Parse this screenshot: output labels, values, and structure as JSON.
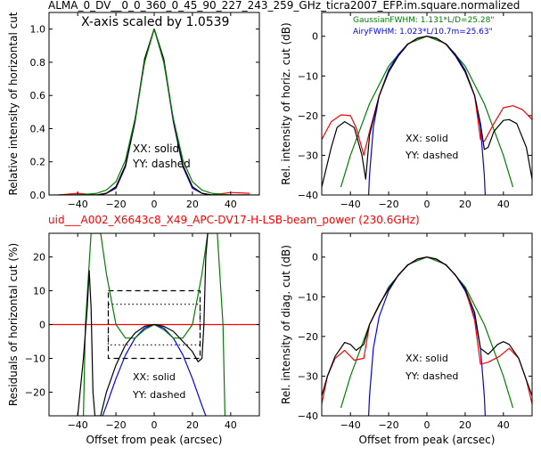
{
  "figure": {
    "title": "ALMA_0_DV__0_0_360_0_45_90_227_243_259_GHz_ticra2007_EFP.im.square.normalized",
    "subtitle": "uid___A002_X6643c8_X49_APC-DV17-H-LSB-beam_power (230.6GHz)",
    "subtitle_color": "#ff0000"
  },
  "chart_data": [
    {
      "type": "line",
      "panel": "top-left",
      "xlabel": "",
      "ylabel": "Relative intensity of horizontal cut",
      "xlim": [
        -55,
        55
      ],
      "ylim": [
        0,
        1.1
      ],
      "xticks": [
        -40,
        -20,
        0,
        20,
        40
      ],
      "yticks": [
        0.0,
        0.2,
        0.4,
        0.6,
        0.8,
        1.0
      ],
      "ytick_labels": [
        "0.0",
        "0.2",
        "0.4",
        "0.6",
        "0.8",
        "1.0"
      ],
      "annotations": [
        "X-axis scaled by 1.0539",
        "XX: solid",
        "YY: dashed"
      ],
      "series": [
        {
          "color": "#0000ff",
          "style": "solid",
          "x": [
            -50,
            -40,
            -30,
            -25,
            -20,
            -15,
            -10,
            -5,
            0,
            5,
            10,
            15,
            20,
            25,
            30,
            40,
            50
          ],
          "y": [
            0.0,
            0.0,
            0.0,
            0.01,
            0.04,
            0.17,
            0.44,
            0.81,
            1.0,
            0.81,
            0.44,
            0.17,
            0.04,
            0.01,
            0.0,
            0.0,
            0.0
          ]
        },
        {
          "color": "#ff0000",
          "style": "solid",
          "x": [
            -50,
            -40,
            -30,
            -25,
            -20,
            -15,
            -10,
            -5,
            0,
            5,
            10,
            15,
            20,
            25,
            30,
            40,
            50
          ],
          "y": [
            0.0,
            0.01,
            0.0,
            0.01,
            0.05,
            0.18,
            0.45,
            0.82,
            1.0,
            0.82,
            0.45,
            0.18,
            0.05,
            0.01,
            0.0,
            0.015,
            0.01
          ]
        },
        {
          "color": "#000000",
          "style": "solid",
          "x": [
            -50,
            -40,
            -30,
            -25,
            -20,
            -15,
            -10,
            -5,
            0,
            5,
            10,
            15,
            20,
            25,
            30,
            40,
            50
          ],
          "y": [
            0.0,
            0.0,
            0.0,
            0.01,
            0.05,
            0.18,
            0.45,
            0.82,
            1.0,
            0.82,
            0.45,
            0.18,
            0.05,
            0.01,
            0.0,
            0.0,
            0.0
          ]
        },
        {
          "color": "#008000",
          "style": "solid",
          "x": [
            -55,
            -40,
            -30,
            -25,
            -20,
            -15,
            -10,
            -5,
            0,
            5,
            10,
            15,
            20,
            25,
            30,
            40,
            55
          ],
          "y": [
            0.0,
            0.0,
            0.01,
            0.03,
            0.08,
            0.21,
            0.46,
            0.8,
            1.0,
            0.8,
            0.46,
            0.21,
            0.08,
            0.03,
            0.01,
            0.0,
            0.0
          ]
        }
      ]
    },
    {
      "type": "line",
      "panel": "top-right",
      "xlabel": "",
      "ylabel": "Rel. intensity of horiz. cut (dB)",
      "xlim": [
        -55,
        55
      ],
      "ylim": [
        -40,
        6
      ],
      "xticks": [
        -40,
        -20,
        0,
        20,
        40
      ],
      "yticks": [
        -40,
        -30,
        -20,
        -10,
        0
      ],
      "annotations": [
        "GaussianFWHM: 1.131*L/D=25.28\"",
        "AiryFWHM: 1.023*L/10.7m=25.63\"",
        "XX: solid",
        "YY: dashed"
      ],
      "annotation_colors": [
        "#008000",
        "#0000ff",
        "#000000",
        "#000000"
      ],
      "series": [
        {
          "color": "#008000",
          "style": "solid",
          "x": [
            -45,
            -40,
            -30,
            -20,
            -10,
            0,
            10,
            20,
            30,
            40,
            45
          ],
          "y": [
            -38,
            -30,
            -17,
            -7.5,
            -1.9,
            0,
            -1.9,
            -7.5,
            -17,
            -30,
            -38
          ]
        },
        {
          "color": "#0000ff",
          "style": "solid",
          "x": [
            -30.5,
            -30,
            -28,
            -25,
            -20,
            -15,
            -10,
            -5,
            0,
            5,
            10,
            15,
            20,
            25,
            28,
            30,
            30.5
          ],
          "y": [
            -40,
            -35,
            -23,
            -15,
            -8.5,
            -4.6,
            -2,
            -0.5,
            0,
            -0.5,
            -2,
            -4.6,
            -8.5,
            -15,
            -23,
            -35,
            -40
          ]
        },
        {
          "color": "#ff0000",
          "style": "solid",
          "x": [
            -55,
            -50,
            -45,
            -40,
            -37,
            -33,
            -30,
            -25,
            -20,
            -15,
            -10,
            -5,
            0,
            5,
            10,
            15,
            20,
            25,
            28,
            30,
            35,
            40,
            45,
            50,
            55
          ],
          "y": [
            -26,
            -21.5,
            -19.8,
            -20,
            -23,
            -30,
            -24,
            -15,
            -9,
            -5,
            -2,
            -0.5,
            0,
            -0.5,
            -2,
            -5,
            -9,
            -15,
            -26,
            -26.5,
            -22,
            -18,
            -17.5,
            -18.5,
            -21
          ]
        },
        {
          "color": "#000000",
          "style": "solid",
          "x": [
            -55,
            -50,
            -47,
            -43,
            -38,
            -34,
            -32,
            -30,
            -25,
            -20,
            -15,
            -10,
            -5,
            0,
            5,
            10,
            15,
            20,
            25,
            28,
            30,
            32,
            35,
            40,
            43,
            47,
            52,
            55
          ],
          "y": [
            -38,
            -28,
            -23,
            -21.5,
            -23,
            -30,
            -36,
            -25,
            -15,
            -9,
            -5,
            -2,
            -0.5,
            0,
            -0.5,
            -2,
            -5,
            -9,
            -15,
            -22,
            -28.5,
            -28,
            -24,
            -21.2,
            -21,
            -22,
            -28,
            -36
          ]
        }
      ]
    },
    {
      "type": "line",
      "panel": "bottom-left",
      "xlabel": "Offset from peak (arcsec)",
      "ylabel": "Residuals of horizontal cut (%)",
      "xlim": [
        -55,
        55
      ],
      "ylim": [
        -27,
        27
      ],
      "xticks": [
        -40,
        -20,
        0,
        20,
        40
      ],
      "yticks": [
        -20,
        -10,
        0,
        10,
        20
      ],
      "annotations": [
        "XX: solid",
        "YY: dashed"
      ],
      "series": [
        {
          "color": "#ff0000",
          "style": "solid",
          "x": [
            -55,
            55
          ],
          "y": [
            0,
            0
          ]
        },
        {
          "color": "#000000",
          "style": "dashed",
          "x": [
            -24,
            24,
            24,
            -24,
            -24
          ],
          "y": [
            10,
            10,
            -10,
            -10,
            10
          ]
        },
        {
          "color": "#000000",
          "style": "dotted",
          "x": [
            -24,
            24,
            24,
            -24,
            -24
          ],
          "y": [
            6,
            6,
            -6,
            -6,
            6
          ]
        },
        {
          "color": "#0000ff",
          "style": "solid",
          "x": [
            -27,
            -25,
            -20,
            -15,
            -10,
            -5,
            0,
            5,
            10,
            15,
            20,
            25,
            27
          ],
          "y": [
            -27,
            -24,
            -16,
            -9,
            -4,
            -1,
            0,
            -1,
            -4,
            -9,
            -16,
            -24,
            -27
          ]
        },
        {
          "color": "#008000",
          "style": "solid",
          "x": [
            -37,
            -36,
            -33,
            -28,
            -25,
            -20,
            -15,
            -10,
            -5,
            0,
            5,
            10,
            15,
            20,
            25,
            28,
            33,
            36,
            37
          ],
          "y": [
            -27,
            0,
            27,
            27,
            15,
            0,
            -4,
            -4,
            -1.5,
            0,
            -1.5,
            -4,
            -4,
            0,
            15,
            27,
            27,
            0,
            -27
          ]
        },
        {
          "color": "#000000",
          "style": "solid",
          "x": [
            -40,
            -37,
            -35,
            -34,
            -33,
            -32,
            -31,
            -28,
            -25,
            -20,
            -15,
            -10,
            -5,
            0,
            5,
            10,
            15,
            20,
            23,
            25,
            26,
            27,
            28
          ],
          "y": [
            -27,
            -10,
            5,
            16,
            5,
            -20,
            -27,
            -27,
            -20,
            -12,
            -6,
            -2.5,
            -0.5,
            0,
            -0.5,
            -2,
            -5,
            -8,
            -11,
            -10,
            0,
            20,
            27
          ]
        }
      ]
    },
    {
      "type": "line",
      "panel": "bottom-right",
      "xlabel": "Offset from peak (arcsec)",
      "ylabel": "Rel. intensity of diag. cut (dB)",
      "xlim": [
        -55,
        55
      ],
      "ylim": [
        -40,
        6
      ],
      "xticks": [
        -40,
        -20,
        0,
        20,
        40
      ],
      "yticks": [
        -40,
        -30,
        -20,
        -10,
        0
      ],
      "annotations": [
        "XX: solid",
        "YY: dashed"
      ],
      "series": [
        {
          "color": "#008000",
          "style": "solid",
          "x": [
            -45,
            -40,
            -30,
            -20,
            -10,
            0,
            10,
            20,
            30,
            40,
            45
          ],
          "y": [
            -38,
            -30,
            -17,
            -7.5,
            -1.9,
            0,
            -1.9,
            -7.5,
            -17,
            -30,
            -38
          ]
        },
        {
          "color": "#0000ff",
          "style": "solid",
          "x": [
            -30.5,
            -30,
            -28,
            -25,
            -20,
            -15,
            -10,
            -5,
            0,
            5,
            10,
            15,
            20,
            25,
            28,
            30,
            30.5
          ],
          "y": [
            -40,
            -35,
            -23,
            -15,
            -8.5,
            -4.6,
            -2,
            -0.5,
            0,
            -0.5,
            -2,
            -4.6,
            -8.5,
            -15,
            -23,
            -35,
            -40
          ]
        },
        {
          "color": "#ff0000",
          "style": "solid",
          "x": [
            -55,
            -52,
            -48,
            -43,
            -38,
            -33,
            -30,
            -25,
            -20,
            -15,
            -10,
            -5,
            0,
            5,
            10,
            15,
            20,
            25,
            28,
            32,
            38,
            43,
            48,
            52,
            55
          ],
          "y": [
            -37,
            -30,
            -25.5,
            -23.5,
            -26,
            -25.5,
            -17,
            -12,
            -8,
            -4.6,
            -2,
            -0.5,
            0,
            -0.5,
            -2,
            -4.6,
            -8,
            -16,
            -27,
            -26.5,
            -25,
            -23,
            -25.5,
            -31,
            -37
          ]
        },
        {
          "color": "#000000",
          "style": "solid",
          "x": [
            -55,
            -52,
            -48,
            -43,
            -40,
            -37,
            -33,
            -30,
            -25,
            -20,
            -15,
            -10,
            -5,
            0,
            5,
            10,
            15,
            20,
            25,
            28,
            32,
            37,
            40,
            43,
            48,
            52,
            55
          ],
          "y": [
            -35,
            -30,
            -25,
            -21.5,
            -22,
            -23.5,
            -22,
            -17,
            -12,
            -8,
            -4.6,
            -2,
            -0.5,
            0,
            -0.5,
            -2,
            -4.6,
            -8,
            -14,
            -23,
            -24.5,
            -22,
            -21.3,
            -22,
            -25.5,
            -31,
            -35
          ]
        }
      ]
    }
  ]
}
